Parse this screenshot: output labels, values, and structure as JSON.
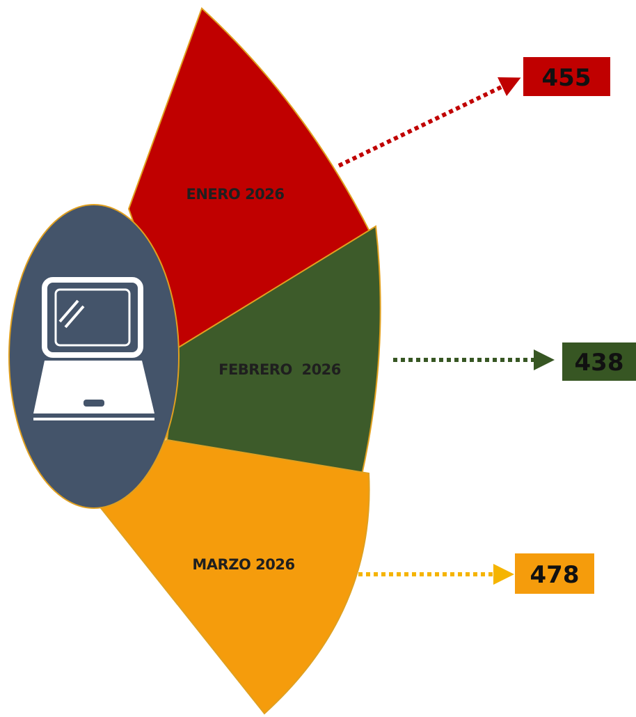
{
  "items": [
    {
      "label": "ENERO 2026",
      "value": 455
    },
    {
      "label": "FEBRERO  2026",
      "value": 438
    },
    {
      "label": "MARZO 2026",
      "value": 478
    }
  ]
}
